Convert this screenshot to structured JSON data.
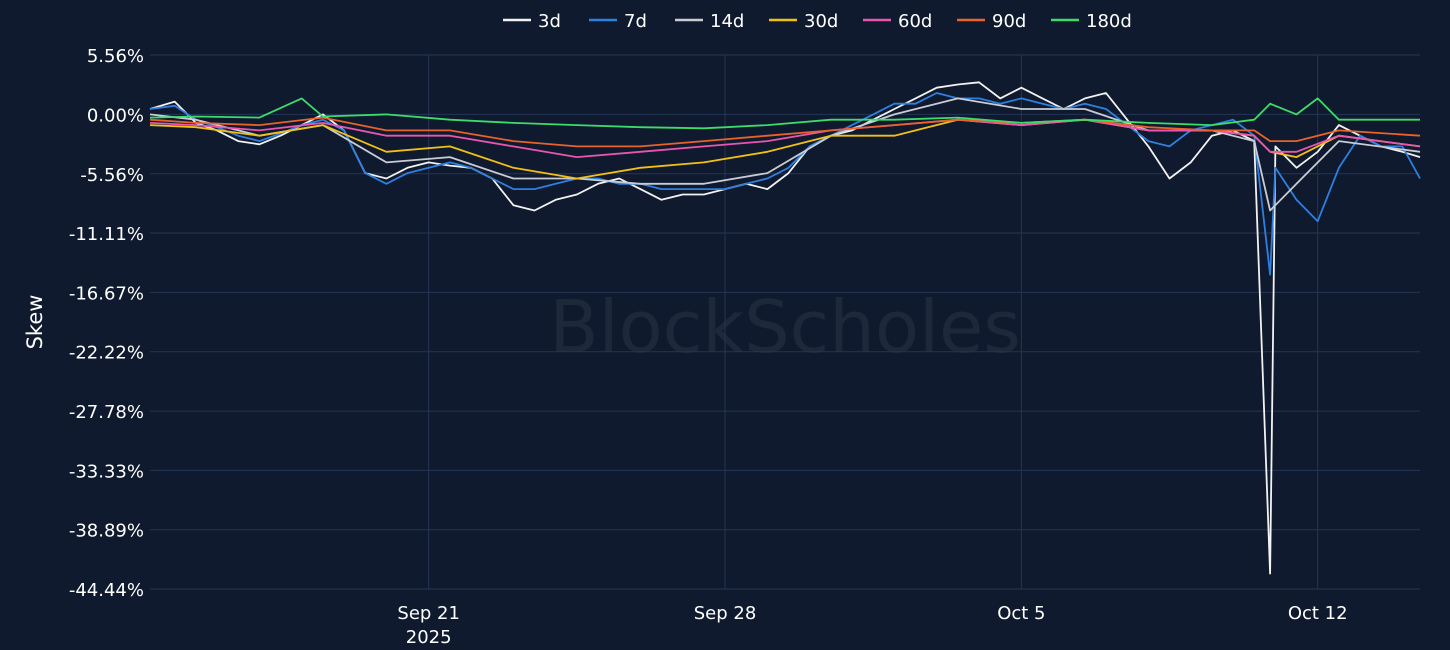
{
  "watermark": "BlockScholes",
  "chart_data": {
    "type": "line",
    "title": "",
    "xlabel": "",
    "ylabel": "Skew",
    "legend_position": "top-center",
    "grid": true,
    "x_range": [
      "2025-09-14T10:00",
      "2025-10-14T10:00"
    ],
    "ylim": [
      -44.44,
      5.56
    ],
    "y_ticks": [
      "5.56%",
      "0.00%",
      "-5.56%",
      "-11.11%",
      "-16.67%",
      "-22.22%",
      "-27.78%",
      "-33.33%",
      "-38.89%",
      "-44.44%"
    ],
    "y_tick_values": [
      5.56,
      0,
      -5.56,
      -11.11,
      -16.67,
      -22.22,
      -27.78,
      -33.33,
      -38.89,
      -44.44
    ],
    "x_ticks": [
      {
        "date": "2025-09-21",
        "label": "Sep 21",
        "sub": "2025"
      },
      {
        "date": "2025-09-28",
        "label": "Sep 28",
        "sub": ""
      },
      {
        "date": "2025-10-05",
        "label": "Oct 5",
        "sub": ""
      },
      {
        "date": "2025-10-12",
        "label": "Oct 12",
        "sub": ""
      }
    ],
    "series": [
      {
        "name": "3d",
        "color": "#f2f2f2",
        "x": [
          "2025-09-14T10:00",
          "2025-09-15T00:00",
          "2025-09-15T12:00",
          "2025-09-16T00:00",
          "2025-09-16T12:00",
          "2025-09-17T00:00",
          "2025-09-17T12:00",
          "2025-09-18T00:00",
          "2025-09-18T12:00",
          "2025-09-19T00:00",
          "2025-09-19T12:00",
          "2025-09-20T00:00",
          "2025-09-20T12:00",
          "2025-09-21T00:00",
          "2025-09-21T12:00",
          "2025-09-22T00:00",
          "2025-09-22T12:00",
          "2025-09-23T00:00",
          "2025-09-23T12:00",
          "2025-09-24T00:00",
          "2025-09-24T12:00",
          "2025-09-25T00:00",
          "2025-09-25T12:00",
          "2025-09-26T00:00",
          "2025-09-26T12:00",
          "2025-09-27T00:00",
          "2025-09-27T12:00",
          "2025-09-28T00:00",
          "2025-09-28T12:00",
          "2025-09-29T00:00",
          "2025-09-29T12:00",
          "2025-09-30T00:00",
          "2025-09-30T12:00",
          "2025-10-01T00:00",
          "2025-10-01T12:00",
          "2025-10-02T00:00",
          "2025-10-02T12:00",
          "2025-10-03T00:00",
          "2025-10-03T12:00",
          "2025-10-04T00:00",
          "2025-10-04T12:00",
          "2025-10-05T00:00",
          "2025-10-05T12:00",
          "2025-10-06T00:00",
          "2025-10-06T12:00",
          "2025-10-07T00:00",
          "2025-10-07T12:00",
          "2025-10-08T00:00",
          "2025-10-08T12:00",
          "2025-10-09T00:00",
          "2025-10-09T12:00",
          "2025-10-10T00:00",
          "2025-10-10T12:00",
          "2025-10-10T21:00",
          "2025-10-11T00:00",
          "2025-10-11T12:00",
          "2025-10-12T00:00",
          "2025-10-12T12:00",
          "2025-10-13T00:00",
          "2025-10-13T12:00",
          "2025-10-14T00:00",
          "2025-10-14T10:00"
        ],
        "values": [
          0.5,
          1.2,
          -0.8,
          -1.5,
          -2.5,
          -2.8,
          -2.0,
          -1.0,
          0.0,
          -1.5,
          -5.5,
          -6.0,
          -5.0,
          -4.5,
          -4.8,
          -5.0,
          -6.0,
          -8.5,
          -9.0,
          -8.0,
          -7.5,
          -6.5,
          -6.0,
          -7.0,
          -8.0,
          -7.5,
          -7.5,
          -7.0,
          -6.5,
          -7.0,
          -5.5,
          -3.0,
          -2.0,
          -1.5,
          -0.5,
          0.5,
          1.5,
          2.5,
          2.8,
          3.0,
          1.5,
          2.5,
          1.5,
          0.5,
          1.5,
          2.0,
          -0.5,
          -3.0,
          -6.0,
          -4.5,
          -2.0,
          -1.5,
          -2.5,
          -43.0,
          -3.0,
          -5.0,
          -3.5,
          -1.0,
          -2.0,
          -3.0,
          -3.5,
          -4.0
        ]
      },
      {
        "name": "7d",
        "color": "#2f7fe0",
        "x": [
          "2025-09-14T10:00",
          "2025-09-15T00:00",
          "2025-09-15T12:00",
          "2025-09-16T00:00",
          "2025-09-16T12:00",
          "2025-09-17T00:00",
          "2025-09-17T12:00",
          "2025-09-18T00:00",
          "2025-09-18T12:00",
          "2025-09-19T00:00",
          "2025-09-19T12:00",
          "2025-09-20T00:00",
          "2025-09-20T12:00",
          "2025-09-21T00:00",
          "2025-09-21T12:00",
          "2025-09-22T00:00",
          "2025-09-22T12:00",
          "2025-09-23T00:00",
          "2025-09-23T12:00",
          "2025-09-24T00:00",
          "2025-09-24T12:00",
          "2025-09-25T00:00",
          "2025-09-25T12:00",
          "2025-09-26T00:00",
          "2025-09-26T12:00",
          "2025-09-27T00:00",
          "2025-09-27T12:00",
          "2025-09-28T00:00",
          "2025-09-28T12:00",
          "2025-09-29T00:00",
          "2025-09-29T12:00",
          "2025-09-30T00:00",
          "2025-09-30T12:00",
          "2025-10-01T00:00",
          "2025-10-01T12:00",
          "2025-10-02T00:00",
          "2025-10-02T12:00",
          "2025-10-03T00:00",
          "2025-10-03T12:00",
          "2025-10-04T00:00",
          "2025-10-04T12:00",
          "2025-10-05T00:00",
          "2025-10-05T12:00",
          "2025-10-06T00:00",
          "2025-10-06T12:00",
          "2025-10-07T00:00",
          "2025-10-07T12:00",
          "2025-10-08T00:00",
          "2025-10-08T12:00",
          "2025-10-09T00:00",
          "2025-10-09T12:00",
          "2025-10-10T00:00",
          "2025-10-10T12:00",
          "2025-10-10T21:00",
          "2025-10-11T00:00",
          "2025-10-11T12:00",
          "2025-10-12T00:00",
          "2025-10-12T12:00",
          "2025-10-13T00:00",
          "2025-10-13T12:00",
          "2025-10-14T00:00",
          "2025-10-14T10:00"
        ],
        "values": [
          0.5,
          0.8,
          -0.5,
          -1.2,
          -2.0,
          -2.5,
          -1.8,
          -1.0,
          -0.5,
          -1.5,
          -5.5,
          -6.5,
          -5.5,
          -5.0,
          -4.5,
          -5.0,
          -6.0,
          -7.0,
          -7.0,
          -6.5,
          -6.0,
          -6.0,
          -6.5,
          -6.5,
          -7.0,
          -7.0,
          -7.0,
          -7.0,
          -6.5,
          -6.0,
          -5.0,
          -3.0,
          -2.0,
          -1.0,
          0.0,
          1.0,
          1.0,
          2.0,
          1.5,
          1.5,
          1.0,
          1.5,
          1.0,
          0.5,
          1.0,
          0.5,
          -1.0,
          -2.5,
          -3.0,
          -1.5,
          -1.0,
          -0.5,
          -2.0,
          -15.0,
          -5.0,
          -8.0,
          -10.0,
          -5.0,
          -2.0,
          -3.0,
          -3.0,
          -6.0
        ]
      },
      {
        "name": "14d",
        "color": "#c9ccd4",
        "x": [
          "2025-09-14T10:00",
          "2025-09-15T12:00",
          "2025-09-17T00:00",
          "2025-09-18T12:00",
          "2025-09-20T00:00",
          "2025-09-21T12:00",
          "2025-09-23T00:00",
          "2025-09-24T12:00",
          "2025-09-26T00:00",
          "2025-09-27T12:00",
          "2025-09-29T00:00",
          "2025-09-30T12:00",
          "2025-10-02T00:00",
          "2025-10-03T12:00",
          "2025-10-05T00:00",
          "2025-10-06T12:00",
          "2025-10-08T00:00",
          "2025-10-09T12:00",
          "2025-10-10T12:00",
          "2025-10-10T21:00",
          "2025-10-11T12:00",
          "2025-10-12T12:00",
          "2025-10-14T10:00"
        ],
        "values": [
          0.0,
          -0.5,
          -2.0,
          -1.0,
          -4.5,
          -4.0,
          -6.0,
          -6.0,
          -6.5,
          -6.5,
          -5.5,
          -2.0,
          0.0,
          1.5,
          0.5,
          0.5,
          -1.5,
          -1.5,
          -2.5,
          -9.0,
          -6.5,
          -2.5,
          -3.5
        ]
      },
      {
        "name": "30d",
        "color": "#f2c014",
        "x": [
          "2025-09-14T10:00",
          "2025-09-15T12:00",
          "2025-09-17T00:00",
          "2025-09-18T12:00",
          "2025-09-20T00:00",
          "2025-09-21T12:00",
          "2025-09-23T00:00",
          "2025-09-24T12:00",
          "2025-09-26T00:00",
          "2025-09-27T12:00",
          "2025-09-29T00:00",
          "2025-09-30T12:00",
          "2025-10-02T00:00",
          "2025-10-03T12:00",
          "2025-10-05T00:00",
          "2025-10-06T12:00",
          "2025-10-08T00:00",
          "2025-10-09T12:00",
          "2025-10-10T12:00",
          "2025-10-10T21:00",
          "2025-10-11T12:00",
          "2025-10-12T12:00",
          "2025-10-14T10:00"
        ],
        "values": [
          -1.0,
          -1.2,
          -2.0,
          -1.0,
          -3.5,
          -3.0,
          -5.0,
          -6.0,
          -5.0,
          -4.5,
          -3.5,
          -2.0,
          -2.0,
          -0.5,
          -1.0,
          -0.5,
          -1.5,
          -1.5,
          -2.0,
          -3.5,
          -4.0,
          -2.0,
          -3.0
        ]
      },
      {
        "name": "60d",
        "color": "#e856b0",
        "x": [
          "2025-09-14T10:00",
          "2025-09-15T12:00",
          "2025-09-17T00:00",
          "2025-09-18T12:00",
          "2025-09-20T00:00",
          "2025-09-21T12:00",
          "2025-09-23T00:00",
          "2025-09-24T12:00",
          "2025-09-26T00:00",
          "2025-09-27T12:00",
          "2025-09-29T00:00",
          "2025-09-30T12:00",
          "2025-10-02T00:00",
          "2025-10-03T12:00",
          "2025-10-05T00:00",
          "2025-10-06T12:00",
          "2025-10-08T00:00",
          "2025-10-09T12:00",
          "2025-10-10T12:00",
          "2025-10-10T21:00",
          "2025-10-11T12:00",
          "2025-10-12T12:00",
          "2025-10-14T10:00"
        ],
        "values": [
          -0.8,
          -1.0,
          -1.5,
          -0.8,
          -2.0,
          -2.0,
          -3.0,
          -4.0,
          -3.5,
          -3.0,
          -2.5,
          -1.5,
          -1.0,
          -0.5,
          -1.0,
          -0.5,
          -1.5,
          -1.5,
          -2.0,
          -3.5,
          -3.5,
          -2.0,
          -3.0
        ]
      },
      {
        "name": "90d",
        "color": "#e8622a",
        "x": [
          "2025-09-14T10:00",
          "2025-09-15T12:00",
          "2025-09-17T00:00",
          "2025-09-18T12:00",
          "2025-09-20T00:00",
          "2025-09-21T12:00",
          "2025-09-23T00:00",
          "2025-09-24T12:00",
          "2025-09-26T00:00",
          "2025-09-27T12:00",
          "2025-09-29T00:00",
          "2025-09-30T12:00",
          "2025-10-02T00:00",
          "2025-10-03T12:00",
          "2025-10-05T00:00",
          "2025-10-06T12:00",
          "2025-10-08T00:00",
          "2025-10-09T12:00",
          "2025-10-10T12:00",
          "2025-10-10T21:00",
          "2025-10-11T12:00",
          "2025-10-12T12:00",
          "2025-10-14T10:00"
        ],
        "values": [
          -0.5,
          -0.8,
          -1.0,
          -0.3,
          -1.5,
          -1.5,
          -2.5,
          -3.0,
          -3.0,
          -2.5,
          -2.0,
          -1.5,
          -1.0,
          -0.5,
          -0.8,
          -0.5,
          -1.2,
          -1.5,
          -1.5,
          -2.5,
          -2.5,
          -1.5,
          -2.0
        ]
      },
      {
        "name": "180d",
        "color": "#3ddc6a",
        "x": [
          "2025-09-14T10:00",
          "2025-09-15T12:00",
          "2025-09-17T00:00",
          "2025-09-18T00:00",
          "2025-09-18T12:00",
          "2025-09-20T00:00",
          "2025-09-21T12:00",
          "2025-09-23T00:00",
          "2025-09-24T12:00",
          "2025-09-26T00:00",
          "2025-09-27T12:00",
          "2025-09-29T00:00",
          "2025-09-30T12:00",
          "2025-10-02T00:00",
          "2025-10-03T12:00",
          "2025-10-05T00:00",
          "2025-10-06T12:00",
          "2025-10-08T00:00",
          "2025-10-09T12:00",
          "2025-10-10T12:00",
          "2025-10-10T21:00",
          "2025-10-11T12:00",
          "2025-10-12T00:00",
          "2025-10-12T12:00",
          "2025-10-14T10:00"
        ],
        "values": [
          -0.3,
          -0.2,
          -0.3,
          1.5,
          -0.2,
          0.0,
          -0.5,
          -0.8,
          -1.0,
          -1.2,
          -1.3,
          -1.0,
          -0.5,
          -0.5,
          -0.3,
          -0.8,
          -0.5,
          -0.8,
          -1.0,
          -0.5,
          1.0,
          0.0,
          1.5,
          -0.5,
          -0.5
        ]
      }
    ]
  }
}
